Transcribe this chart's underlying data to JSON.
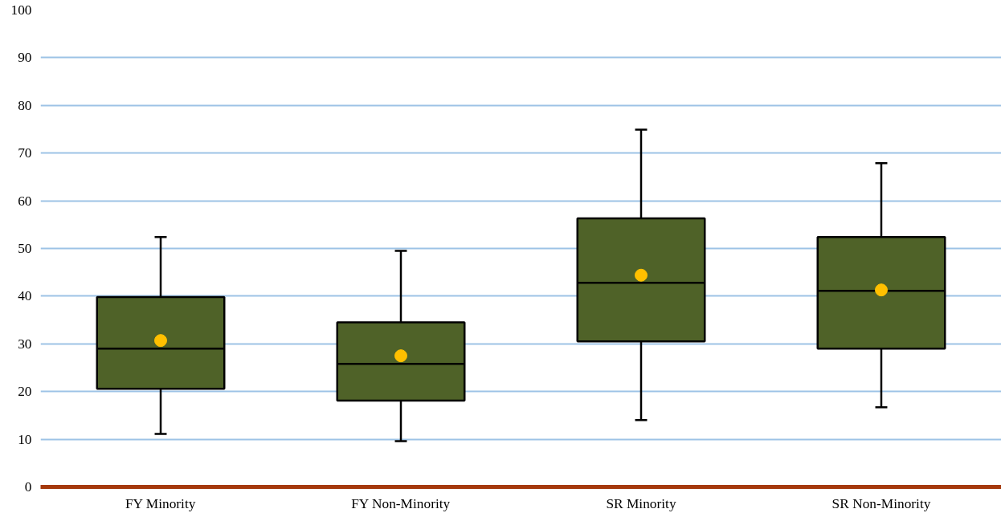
{
  "chart_data": {
    "type": "box",
    "categories": [
      "FY Minority",
      "FY Non-Minority",
      "SR Minority",
      "SR Non-Minority"
    ],
    "series": [
      {
        "color": "#4f6228",
        "boxes": [
          {
            "low": 11.1,
            "q1": 20.6,
            "median": 29.0,
            "q3": 39.8,
            "high": 52.4
          },
          {
            "low": 9.6,
            "q1": 18.1,
            "median": 25.8,
            "q3": 34.5,
            "high": 49.5
          },
          {
            "low": 14.0,
            "q1": 30.5,
            "median": 42.8,
            "q3": 56.3,
            "high": 74.9
          },
          {
            "low": 16.7,
            "q1": 29.0,
            "median": 41.1,
            "q3": 52.4,
            "high": 67.9
          }
        ]
      },
      {
        "type": "scatter",
        "color": "#ffc000",
        "x": [
          "FY Minority",
          "FY Non-Minority",
          "SR Minority",
          "SR Non-Minority"
        ],
        "values": [
          30.7,
          27.5,
          44.4,
          41.3
        ]
      }
    ],
    "marker": "circle",
    "ylim": [
      0,
      100
    ],
    "yticks": [
      0,
      10,
      20,
      30,
      40,
      50,
      60,
      70,
      80,
      90,
      100
    ],
    "grid": "y"
  }
}
